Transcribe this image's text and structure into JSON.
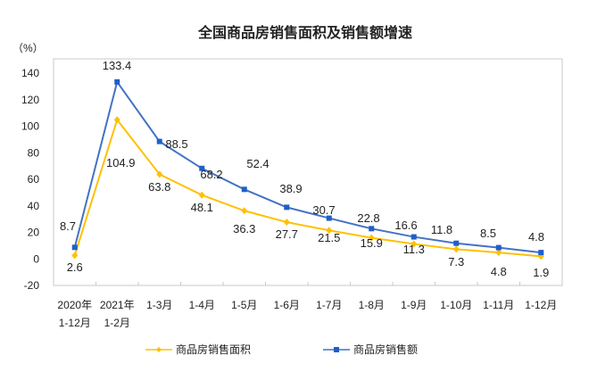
{
  "chart_data": {
    "type": "line",
    "title": "全国商品房销售面积及销售额增速",
    "ylabel": "（%）",
    "ylim": [
      -20,
      140
    ],
    "yticks": [
      -20,
      0,
      20,
      40,
      60,
      80,
      100,
      120,
      140
    ],
    "grid": false,
    "legend_position": "bottom",
    "categories": [
      [
        "2020年",
        "1-12月"
      ],
      [
        "2021年",
        "1-2月"
      ],
      [
        "1-3月"
      ],
      [
        "1-4月"
      ],
      [
        "1-5月"
      ],
      [
        "1-6月"
      ],
      [
        "1-7月"
      ],
      [
        "1-8月"
      ],
      [
        "1-9月"
      ],
      [
        "1-10月"
      ],
      [
        "1-11月"
      ],
      [
        "1-12月"
      ]
    ],
    "series": [
      {
        "name": "商品房销售面积",
        "color": "#FFC000",
        "marker": "diamond",
        "values": [
          2.6,
          104.9,
          63.8,
          48.1,
          36.3,
          27.7,
          21.5,
          15.9,
          11.3,
          7.3,
          4.8,
          1.9
        ]
      },
      {
        "name": "商品房销售额",
        "color": "#4472C4",
        "marker": "square",
        "values": [
          8.7,
          133.4,
          88.5,
          68.2,
          52.4,
          38.9,
          30.7,
          22.8,
          16.6,
          11.8,
          8.5,
          4.8
        ]
      }
    ]
  }
}
